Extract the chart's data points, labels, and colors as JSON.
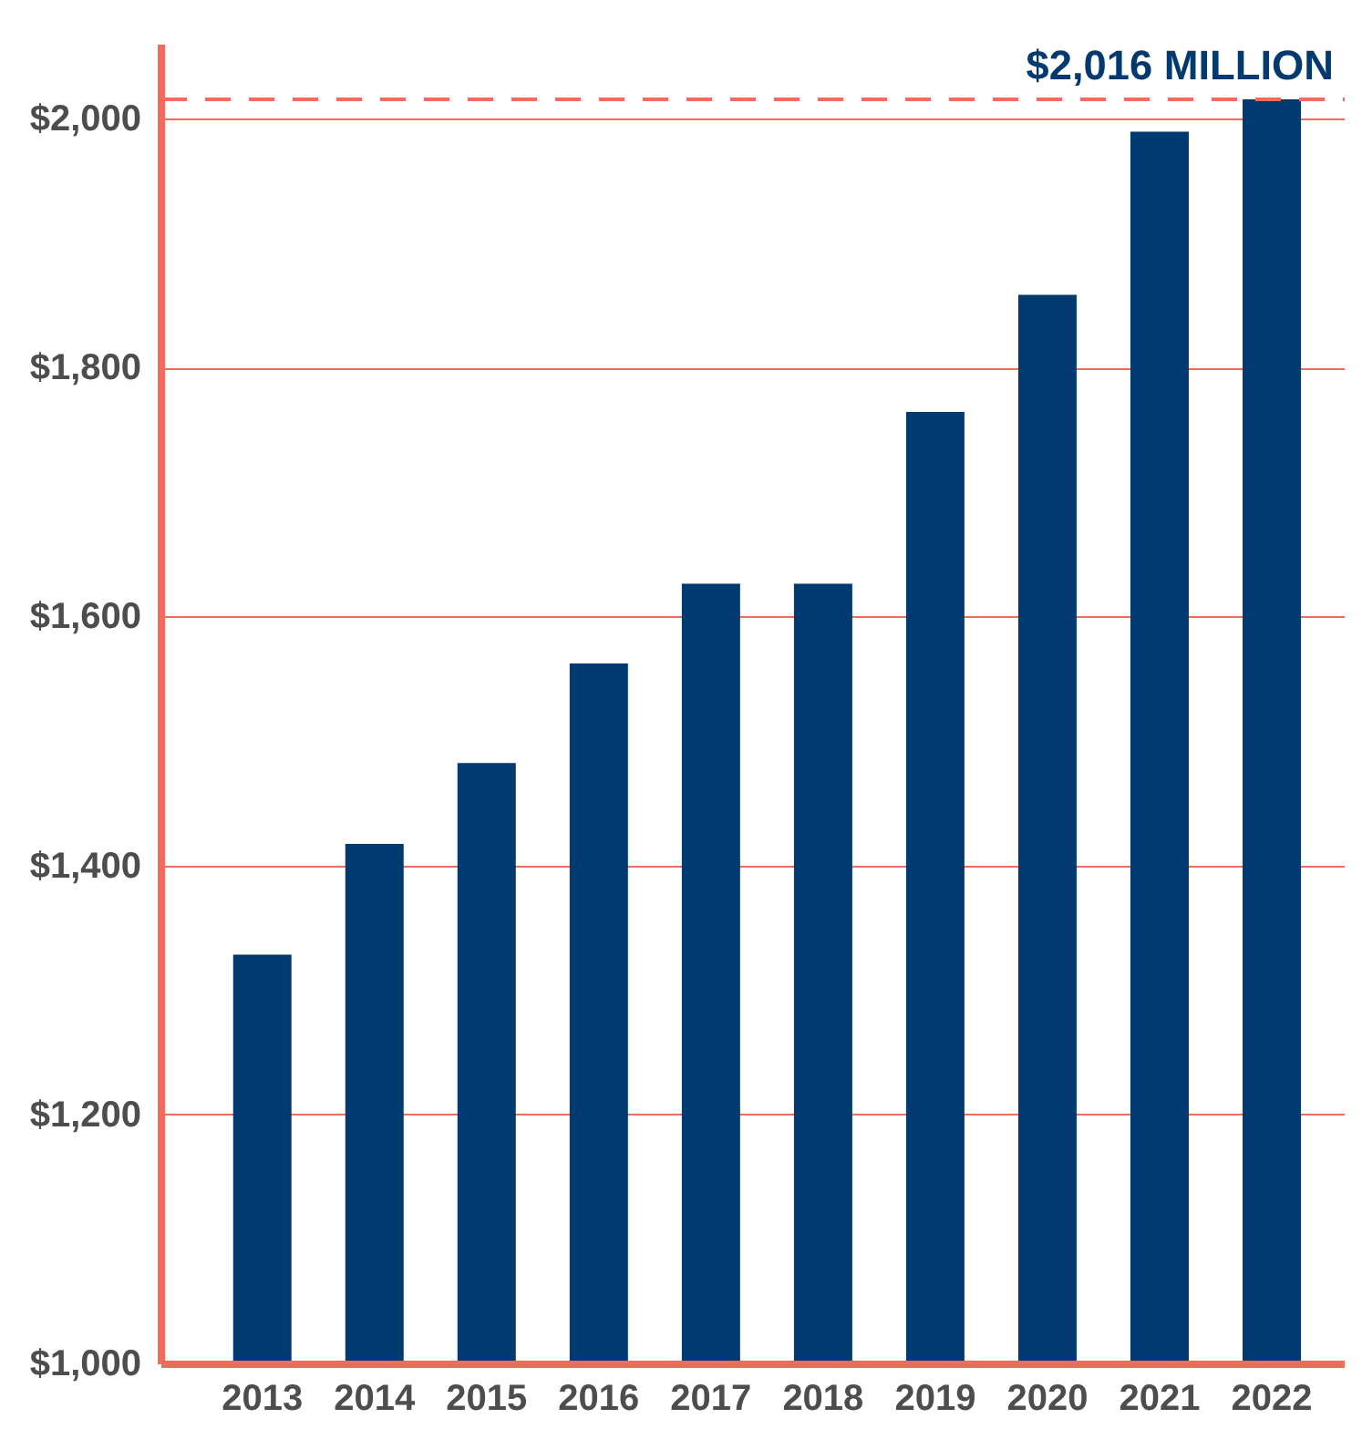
{
  "chart_data": {
    "type": "bar",
    "categories": [
      "2013",
      "2014",
      "2015",
      "2016",
      "2017",
      "2018",
      "2019",
      "2020",
      "2021",
      "2022"
    ],
    "values": [
      1329,
      1418,
      1483,
      1563,
      1627,
      1627,
      1765,
      1859,
      1990,
      2016
    ],
    "color": "#003a70",
    "ylim": [
      1000,
      2060
    ],
    "yticks": [
      {
        "value": 1000,
        "label": "$1,000"
      },
      {
        "value": 1200,
        "label": "$1,200"
      },
      {
        "value": 1400,
        "label": "$1,400"
      },
      {
        "value": 1600,
        "label": "$1,600"
      },
      {
        "value": 1800,
        "label": "$1,800"
      },
      {
        "value": 2000,
        "label": "$2,000"
      }
    ],
    "grid": "y",
    "ref_lines": [
      {
        "axis": "y",
        "value": 2016,
        "label": "$2,016 MILLION",
        "color": "#f26b5b",
        "line_style": "dashed"
      }
    ]
  }
}
